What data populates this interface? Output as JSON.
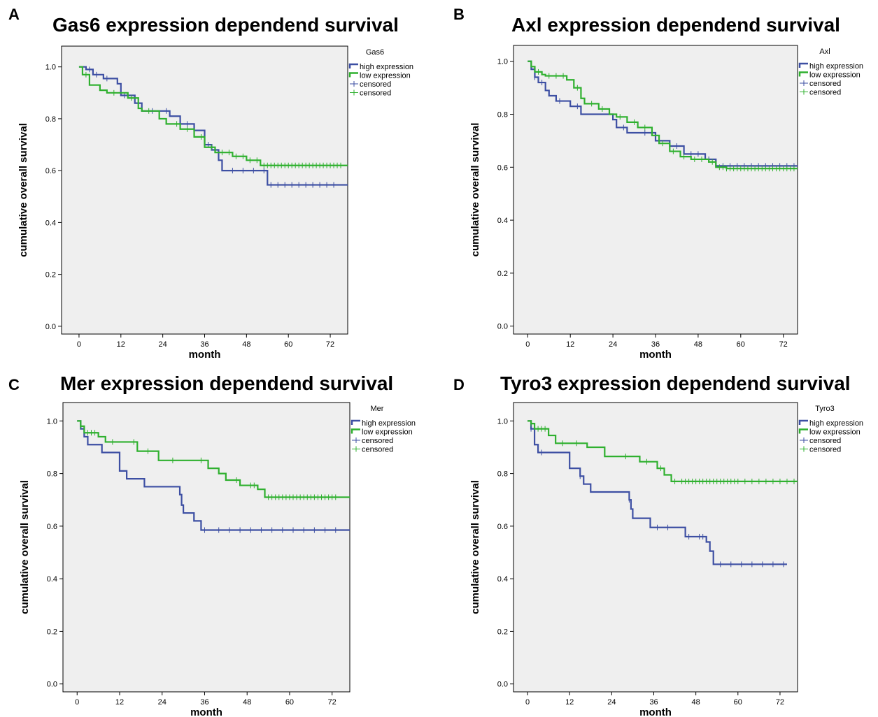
{
  "colors": {
    "high": "#3d4fa3",
    "low": "#2fb02f",
    "plot_bg": "#efefef"
  },
  "chart_data": [
    {
      "panel": "A",
      "type": "line",
      "title": "Gas6 expression dependend survival",
      "xlabel": "month",
      "ylabel": "cumulative overall survival",
      "xticks": [
        0,
        12,
        24,
        36,
        48,
        60,
        72
      ],
      "yticks": [
        "0.0",
        "0.2",
        "0.4",
        "0.6",
        "0.8",
        "1.0"
      ],
      "xlim": [
        -5,
        77
      ],
      "ylim": [
        -0.03,
        1.08
      ],
      "grid": false,
      "legend": {
        "title": "Gas6",
        "entries": [
          "high expression",
          "low expression",
          "censored",
          "censored"
        ],
        "placement": "top-right"
      },
      "series": [
        {
          "name": "high expression",
          "color_key": "high",
          "steps": [
            [
              0,
              1.0
            ],
            [
              2,
              0.99
            ],
            [
              4,
              0.97
            ],
            [
              7,
              0.955
            ],
            [
              11,
              0.935
            ],
            [
              12,
              0.89
            ],
            [
              16,
              0.86
            ],
            [
              18,
              0.83
            ],
            [
              26,
              0.81
            ],
            [
              29,
              0.78
            ],
            [
              33,
              0.755
            ],
            [
              36,
              0.7
            ],
            [
              38,
              0.68
            ],
            [
              40,
              0.64
            ],
            [
              41,
              0.6
            ],
            [
              54,
              0.545
            ],
            [
              77,
              0.545
            ]
          ],
          "censored": [
            3,
            5,
            8,
            13,
            21,
            25,
            31,
            37,
            39,
            44,
            47,
            50,
            53,
            55,
            57,
            59,
            61,
            63,
            65,
            67,
            69,
            71,
            73
          ]
        },
        {
          "name": "low expression",
          "color_key": "low",
          "steps": [
            [
              0,
              1.0
            ],
            [
              1,
              0.97
            ],
            [
              3,
              0.93
            ],
            [
              6,
              0.91
            ],
            [
              8,
              0.9
            ],
            [
              14,
              0.88
            ],
            [
              17,
              0.84
            ],
            [
              18,
              0.83
            ],
            [
              23,
              0.8
            ],
            [
              25,
              0.78
            ],
            [
              29,
              0.76
            ],
            [
              33,
              0.73
            ],
            [
              36,
              0.69
            ],
            [
              39,
              0.67
            ],
            [
              44,
              0.655
            ],
            [
              48,
              0.64
            ],
            [
              52,
              0.62
            ],
            [
              77,
              0.62
            ]
          ],
          "censored": [
            2,
            10,
            15,
            20,
            28,
            31,
            35,
            38,
            41,
            43,
            45,
            47,
            49,
            51,
            53,
            54,
            55,
            56,
            57,
            58,
            59,
            60,
            61,
            62,
            63,
            64,
            65,
            66,
            67,
            68,
            69,
            70,
            71,
            72,
            73,
            74,
            75
          ]
        }
      ]
    },
    {
      "panel": "B",
      "type": "line",
      "title": "Axl expression dependend survival",
      "xlabel": "month",
      "ylabel": "cumulative overall survival",
      "xticks": [
        0,
        12,
        24,
        36,
        48,
        60,
        72
      ],
      "yticks": [
        "0.0",
        "0.2",
        "0.4",
        "0.6",
        "0.8",
        "1.0"
      ],
      "xlim": [
        -4,
        76
      ],
      "ylim": [
        -0.03,
        1.06
      ],
      "grid": false,
      "legend": {
        "title": "Axl",
        "entries": [
          "high expression",
          "low expression",
          "censored",
          "censored"
        ],
        "placement": "top-right"
      },
      "series": [
        {
          "name": "high expression",
          "color_key": "high",
          "steps": [
            [
              0,
              1.0
            ],
            [
              1,
              0.97
            ],
            [
              2,
              0.94
            ],
            [
              3,
              0.92
            ],
            [
              5,
              0.89
            ],
            [
              6,
              0.87
            ],
            [
              8,
              0.85
            ],
            [
              12,
              0.83
            ],
            [
              15,
              0.8
            ],
            [
              24,
              0.78
            ],
            [
              25,
              0.75
            ],
            [
              28,
              0.73
            ],
            [
              36,
              0.7
            ],
            [
              40,
              0.68
            ],
            [
              44,
              0.65
            ],
            [
              50,
              0.63
            ],
            [
              53,
              0.605
            ],
            [
              76,
              0.605
            ]
          ],
          "censored": [
            2,
            4,
            9,
            14,
            27,
            33,
            42,
            46,
            48,
            51,
            55,
            57,
            59,
            61,
            63,
            65,
            67,
            69,
            71,
            73,
            75
          ]
        },
        {
          "name": "low expression",
          "color_key": "low",
          "steps": [
            [
              0,
              1.0
            ],
            [
              1,
              0.98
            ],
            [
              2,
              0.96
            ],
            [
              4,
              0.95
            ],
            [
              5,
              0.945
            ],
            [
              11,
              0.93
            ],
            [
              13,
              0.9
            ],
            [
              15,
              0.86
            ],
            [
              16,
              0.84
            ],
            [
              20,
              0.82
            ],
            [
              23,
              0.8
            ],
            [
              25,
              0.79
            ],
            [
              28,
              0.77
            ],
            [
              31,
              0.75
            ],
            [
              35,
              0.72
            ],
            [
              37,
              0.69
            ],
            [
              40,
              0.66
            ],
            [
              43,
              0.64
            ],
            [
              46,
              0.63
            ],
            [
              51,
              0.62
            ],
            [
              53,
              0.6
            ],
            [
              56,
              0.595
            ],
            [
              76,
              0.595
            ]
          ],
          "censored": [
            3,
            6,
            8,
            10,
            14,
            18,
            21,
            26,
            30,
            33,
            38,
            41,
            44,
            47,
            49,
            52,
            54,
            55,
            56,
            57,
            58,
            59,
            60,
            61,
            62,
            63,
            64,
            65,
            66,
            67,
            68,
            69,
            70,
            71,
            72,
            73,
            74,
            75
          ]
        }
      ]
    },
    {
      "panel": "C",
      "type": "line",
      "title": "Mer expression dependend survival",
      "xlabel": "month",
      "ylabel": "cumulative overall survival",
      "xticks": [
        0,
        12,
        24,
        36,
        48,
        60,
        72
      ],
      "yticks": [
        "0.0",
        "0.2",
        "0.4",
        "0.6",
        "0.8",
        "1.0"
      ],
      "xlim": [
        -4,
        77
      ],
      "ylim": [
        -0.03,
        1.07
      ],
      "grid": false,
      "legend": {
        "title": "Mer",
        "entries": [
          "high expression",
          "low expression",
          "censored",
          "censored"
        ],
        "placement": "top-right"
      },
      "series": [
        {
          "name": "high expression",
          "color_key": "high",
          "steps": [
            [
              0,
              1.0
            ],
            [
              1,
              0.97
            ],
            [
              2,
              0.94
            ],
            [
              3,
              0.91
            ],
            [
              7,
              0.88
            ],
            [
              12,
              0.81
            ],
            [
              14,
              0.78
            ],
            [
              19,
              0.75
            ],
            [
              29,
              0.72
            ],
            [
              29.5,
              0.68
            ],
            [
              30,
              0.65
            ],
            [
              33,
              0.62
            ],
            [
              35,
              0.585
            ],
            [
              77,
              0.585
            ]
          ],
          "censored": [
            36,
            40,
            43,
            46,
            49,
            52,
            55,
            58,
            61,
            64,
            67,
            70,
            73
          ]
        },
        {
          "name": "low expression",
          "color_key": "low",
          "steps": [
            [
              0,
              1.0
            ],
            [
              1,
              0.98
            ],
            [
              2,
              0.955
            ],
            [
              6,
              0.94
            ],
            [
              8,
              0.92
            ],
            [
              17,
              0.885
            ],
            [
              23,
              0.85
            ],
            [
              37,
              0.82
            ],
            [
              40,
              0.8
            ],
            [
              42,
              0.775
            ],
            [
              46,
              0.755
            ],
            [
              51,
              0.74
            ],
            [
              53,
              0.71
            ],
            [
              77,
              0.71
            ]
          ],
          "censored": [
            1,
            3,
            4,
            5,
            10,
            16,
            20,
            27,
            35,
            45,
            49,
            50,
            54,
            55,
            56,
            57,
            58,
            59,
            60,
            61,
            62,
            63,
            64,
            65,
            66,
            67,
            68,
            69,
            70,
            71,
            72,
            73
          ]
        }
      ]
    },
    {
      "panel": "D",
      "type": "line",
      "title": "Tyro3 expression dependend survival",
      "xlabel": "month",
      "ylabel": "cumulative overall survival",
      "xticks": [
        0,
        12,
        24,
        36,
        48,
        60,
        72
      ],
      "yticks": [
        "0.0",
        "0.2",
        "0.4",
        "0.6",
        "0.8",
        "1.0"
      ],
      "xlim": [
        -4,
        77
      ],
      "ylim": [
        -0.03,
        1.07
      ],
      "grid": false,
      "legend": {
        "title": "Tyro3",
        "entries": [
          "high expression",
          "low expression",
          "censored",
          "censored"
        ],
        "placement": "top-right"
      },
      "series": [
        {
          "name": "high expression",
          "color_key": "high",
          "steps": [
            [
              0,
              1.0
            ],
            [
              1,
              0.97
            ],
            [
              2,
              0.91
            ],
            [
              3,
              0.88
            ],
            [
              12,
              0.82
            ],
            [
              15,
              0.79
            ],
            [
              16,
              0.76
            ],
            [
              18,
              0.73
            ],
            [
              29,
              0.7
            ],
            [
              29.5,
              0.665
            ],
            [
              30,
              0.63
            ],
            [
              35,
              0.595
            ],
            [
              45,
              0.56
            ],
            [
              51,
              0.54
            ],
            [
              52,
              0.505
            ],
            [
              53,
              0.455
            ],
            [
              74,
              0.455
            ]
          ],
          "censored": [
            1,
            4,
            15,
            29,
            37,
            40,
            46,
            49,
            50,
            55,
            58,
            61,
            64,
            67,
            70,
            73
          ]
        },
        {
          "name": "low expression",
          "color_key": "low",
          "steps": [
            [
              0,
              1.0
            ],
            [
              1,
              0.99
            ],
            [
              2,
              0.97
            ],
            [
              6,
              0.945
            ],
            [
              8,
              0.915
            ],
            [
              17,
              0.9
            ],
            [
              22,
              0.865
            ],
            [
              32,
              0.845
            ],
            [
              37,
              0.82
            ],
            [
              39,
              0.795
            ],
            [
              41,
              0.77
            ],
            [
              77,
              0.77
            ]
          ],
          "censored": [
            1,
            3,
            4,
            5,
            10,
            14,
            28,
            34,
            38,
            42,
            44,
            45,
            46,
            47,
            48,
            49,
            50,
            51,
            52,
            53,
            54,
            55,
            56,
            57,
            58,
            59,
            60,
            62,
            64,
            66,
            68,
            70,
            72,
            74,
            76
          ]
        }
      ]
    }
  ]
}
